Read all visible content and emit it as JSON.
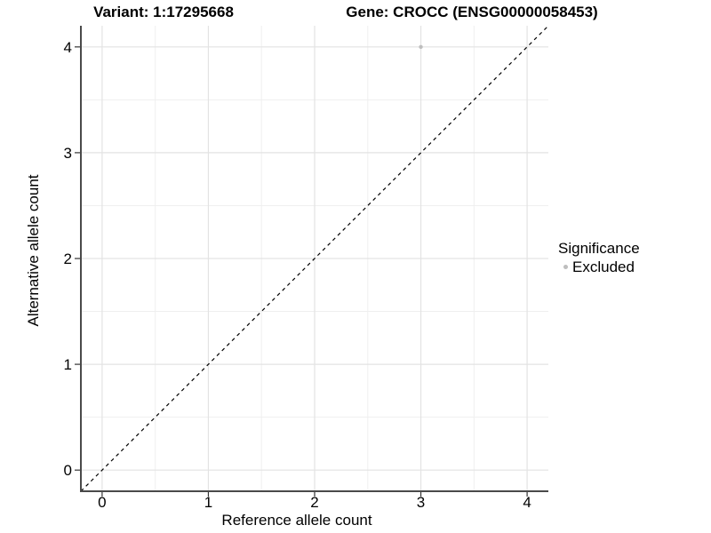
{
  "chart_data": {
    "type": "scatter",
    "titles": {
      "left": "Variant: 1:17295668",
      "right": "Gene: CROCC (ENSG00000058453)"
    },
    "xlabel": "Reference allele count",
    "ylabel": "Alternative allele count",
    "xlim": [
      -0.2,
      4.2
    ],
    "ylim": [
      -0.2,
      4.2
    ],
    "xticks": [
      0,
      1,
      2,
      3,
      4
    ],
    "yticks": [
      0,
      1,
      2,
      3,
      4
    ],
    "xminor": [
      0.5,
      1.5,
      2.5,
      3.5
    ],
    "yminor": [
      0.5,
      1.5,
      2.5,
      3.5
    ],
    "grid": {
      "major_color": "#e3e3e3",
      "minor_color": "#efefef"
    },
    "axis_line_color": "#4a4a4a",
    "tick_color": "#333333",
    "reference_line": {
      "type": "abline",
      "slope": 1,
      "intercept": 0,
      "style": "dashed",
      "color": "#000000"
    },
    "series": [
      {
        "name": "Excluded",
        "color": "#bebebe",
        "point_radius": 2.2,
        "points": [
          [
            3,
            4
          ]
        ]
      }
    ],
    "legend": {
      "title": "Significance",
      "position": "right",
      "items": [
        {
          "label": "Excluded",
          "color": "#bebebe"
        }
      ]
    }
  }
}
